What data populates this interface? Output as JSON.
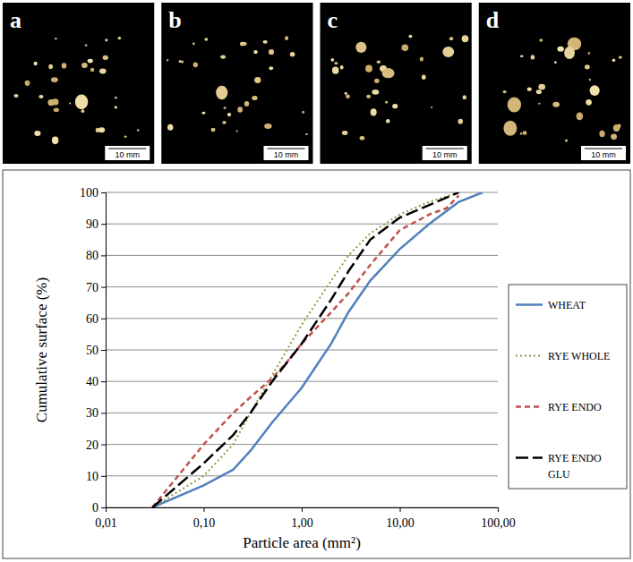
{
  "panels": [
    {
      "label": "a",
      "scale_bar": "10 mm"
    },
    {
      "label": "b",
      "scale_bar": "10 mm"
    },
    {
      "label": "c",
      "scale_bar": "10 mm"
    },
    {
      "label": "d",
      "scale_bar": "10 mm"
    }
  ],
  "chart_data": {
    "type": "line",
    "x_label": "Particle area (mm²)",
    "y_label": "Cumulative surface (%)",
    "log": "x",
    "grid": true,
    "legend": "right",
    "xlim": [
      0.01,
      100
    ],
    "xticks": [
      {
        "value": 0.01,
        "label": "0,01"
      },
      {
        "value": 0.1,
        "label": "0,10"
      },
      {
        "value": 1,
        "label": "1,00"
      },
      {
        "value": 10,
        "label": "10,00"
      },
      {
        "value": 100,
        "label": "100,00"
      }
    ],
    "ylim": [
      0,
      100
    ],
    "yticks": [
      0,
      10,
      20,
      30,
      40,
      50,
      60,
      70,
      80,
      90,
      100
    ],
    "series": [
      {
        "name": "WHEAT",
        "color": "#4f81bd",
        "line_style": "solid",
        "x": [
          0.03,
          0.1,
          0.2,
          0.3,
          0.5,
          1,
          2,
          3,
          5,
          10,
          20,
          40,
          70
        ],
        "values": [
          0,
          7,
          12,
          18,
          27,
          38,
          52,
          62,
          72,
          82,
          90,
          97,
          100
        ]
      },
      {
        "name": "RYE WHOLE",
        "color": "#8c9c3c",
        "line_style": "dotted",
        "x": [
          0.03,
          0.1,
          0.2,
          0.3,
          0.5,
          1,
          2,
          3,
          5,
          10,
          20,
          40
        ],
        "values": [
          0,
          10,
          20,
          30,
          42,
          58,
          72,
          80,
          87,
          93,
          97,
          100
        ]
      },
      {
        "name": "RYE ENDO",
        "color": "#c0504d",
        "line_style": "dashed",
        "x": [
          0.03,
          0.1,
          0.2,
          0.3,
          0.5,
          0.7,
          1,
          2,
          3,
          5,
          10,
          20,
          30,
          40
        ],
        "values": [
          0,
          20,
          30,
          35,
          41,
          46,
          52,
          62,
          68,
          77,
          88,
          93,
          95,
          99
        ]
      },
      {
        "name": "RYE ENDO GLU",
        "color": "#000000",
        "line_style": "long-dashed",
        "x": [
          0.03,
          0.1,
          0.2,
          0.3,
          0.5,
          1,
          2,
          3,
          5,
          10,
          20,
          40
        ],
        "values": [
          0,
          14,
          23,
          30,
          40,
          52,
          66,
          75,
          85,
          92,
          96,
          100
        ]
      }
    ]
  }
}
